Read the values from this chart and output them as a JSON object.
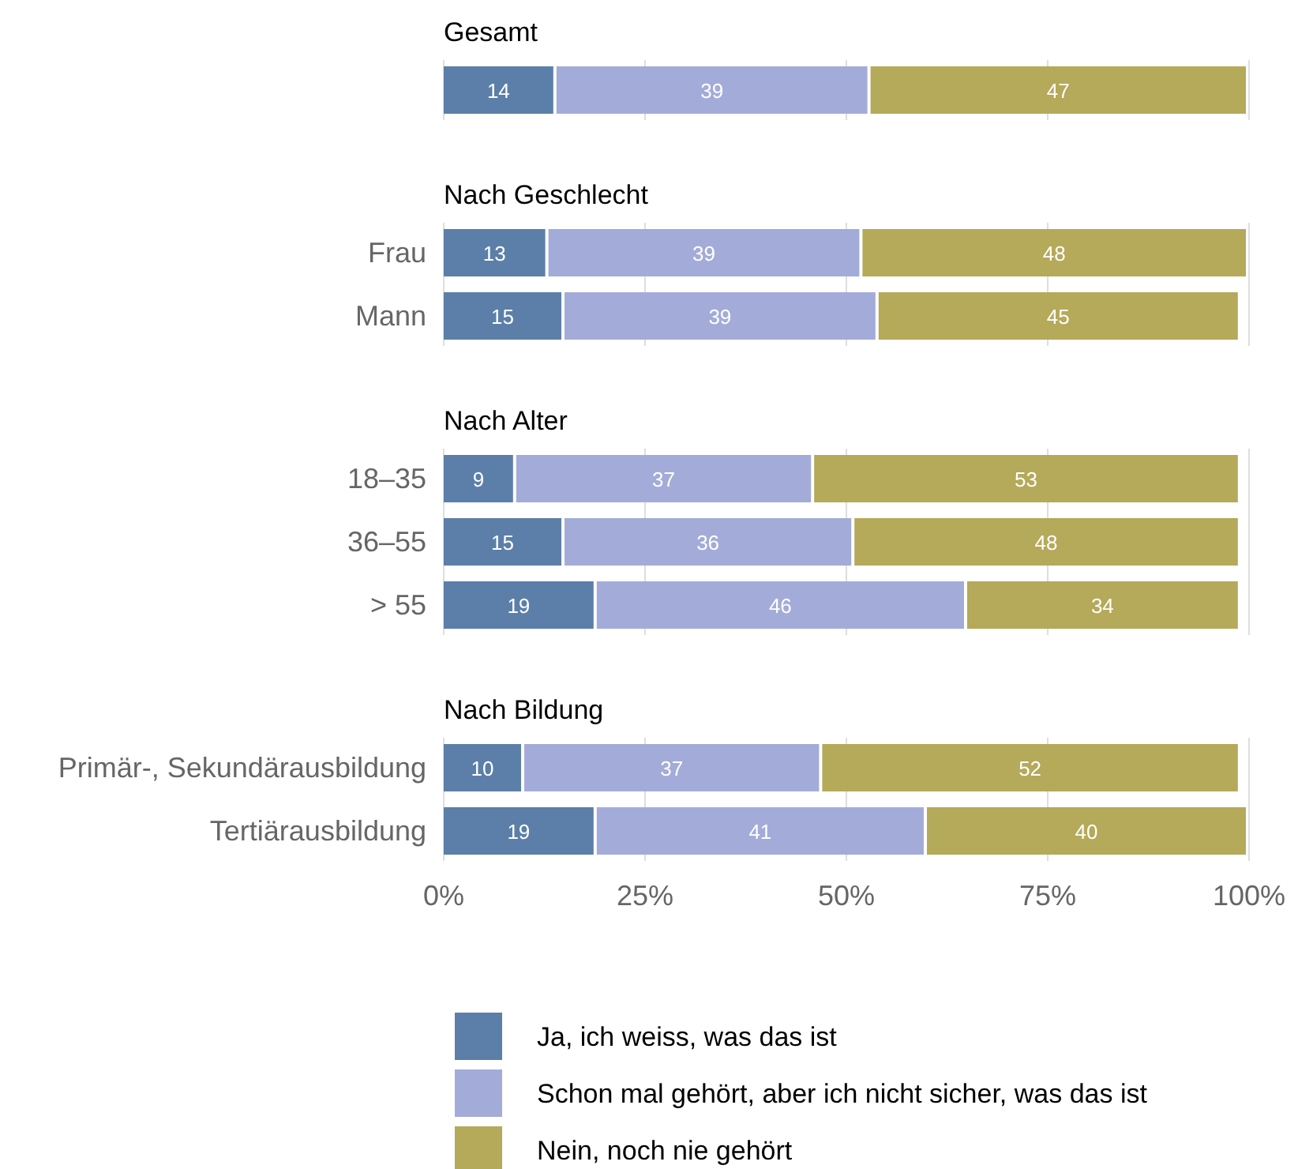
{
  "chart_data": [
    {
      "type": "bar",
      "title": "Gesamt",
      "orientation": "horizontal",
      "stacked": true,
      "data_labels": true,
      "grid": "x",
      "legend": false,
      "tick_labels": "y",
      "categories": [
        null
      ],
      "xlim": [
        0,
        100
      ],
      "xticks": [
        0,
        25,
        50,
        75,
        100
      ],
      "series": [
        {
          "color": "#5b7fa8",
          "values": [
            14
          ]
        },
        {
          "color": "#a3acd8",
          "values": [
            39
          ]
        },
        {
          "color": "#b5a95a",
          "values": [
            47
          ]
        }
      ]
    },
    {
      "type": "bar",
      "title": "Nach Geschlecht",
      "orientation": "horizontal",
      "stacked": true,
      "data_labels": true,
      "grid": "x",
      "legend": false,
      "tick_labels": "y",
      "categories": [
        "Frau",
        "Mann"
      ],
      "xlim": [
        0,
        100
      ],
      "xticks": [
        0,
        25,
        50,
        75,
        100
      ],
      "series": [
        {
          "color": "#5b7fa8",
          "values": [
            13,
            15
          ]
        },
        {
          "color": "#a3acd8",
          "values": [
            39,
            39
          ]
        },
        {
          "color": "#b5a95a",
          "values": [
            48,
            45
          ]
        }
      ]
    },
    {
      "type": "bar",
      "title": "Nach Alter",
      "orientation": "horizontal",
      "stacked": true,
      "data_labels": true,
      "grid": "x",
      "legend": false,
      "tick_labels": "y",
      "categories": [
        "18–35",
        "36–55",
        "> 55"
      ],
      "xlim": [
        0,
        100
      ],
      "xticks": [
        0,
        25,
        50,
        75,
        100
      ],
      "series": [
        {
          "color": "#5b7fa8",
          "values": [
            9,
            15,
            19
          ]
        },
        {
          "color": "#a3acd8",
          "values": [
            37,
            36,
            46
          ]
        },
        {
          "color": "#b5a95a",
          "values": [
            53,
            48,
            34
          ]
        }
      ]
    },
    {
      "type": "bar",
      "title": "Nach Bildung",
      "orientation": "horizontal",
      "stacked": true,
      "data_labels": true,
      "grid": "x",
      "legend": "bottom",
      "categories": [
        "Primär-, Sekundärausbildung",
        "Tertiärausbildung"
      ],
      "xlim": [
        0,
        100
      ],
      "xticks": [
        {
          "value": 0,
          "label": "0%"
        },
        {
          "value": 25,
          "label": "25%"
        },
        {
          "value": 50,
          "label": "50%"
        },
        {
          "value": 75,
          "label": "75%"
        },
        {
          "value": 100,
          "label": "100%"
        }
      ],
      "series": [
        {
          "name": "Ja, ich weiss, was das ist",
          "color": "#5b7fa8",
          "values": [
            10,
            19
          ]
        },
        {
          "name": "Schon mal gehört, aber ich nicht sicher, was das ist",
          "color": "#a3acd8",
          "values": [
            37,
            41
          ]
        },
        {
          "name": "Nein, noch nie gehört",
          "color": "#b5a95a",
          "values": [
            52,
            40
          ]
        }
      ]
    }
  ]
}
